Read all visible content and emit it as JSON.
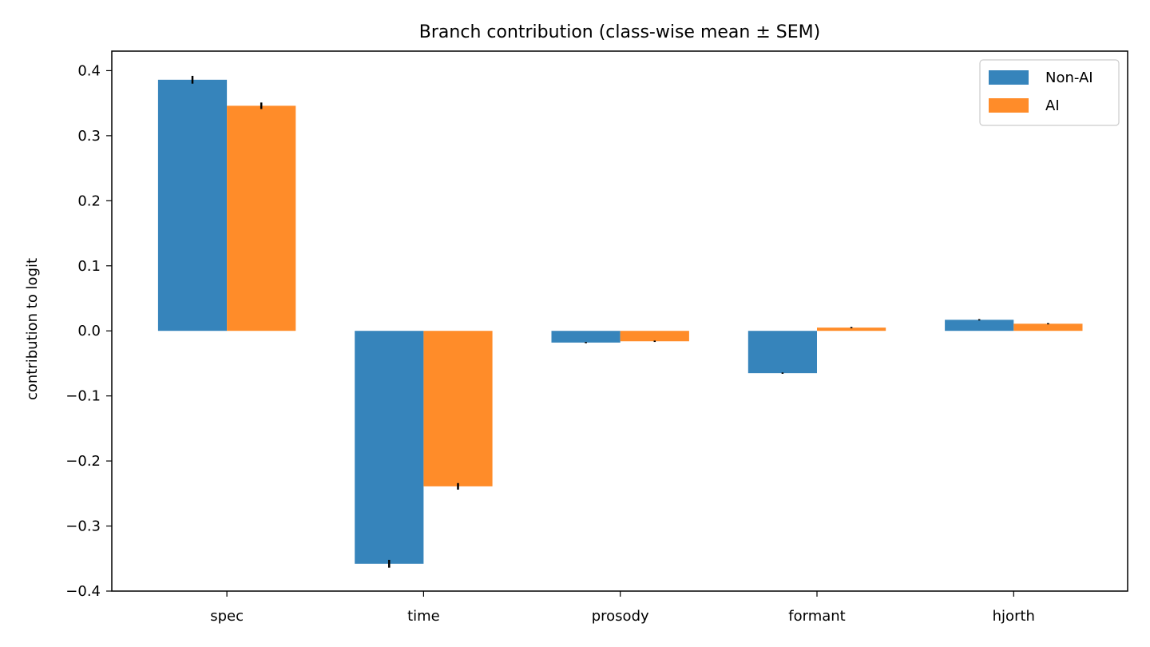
{
  "chart_data": {
    "type": "bar",
    "title": "Branch contribution (class-wise mean ± SEM)",
    "xlabel": "",
    "ylabel": "contribution to logit",
    "categories": [
      "spec",
      "time",
      "prosody",
      "formant",
      "hjorth"
    ],
    "series": [
      {
        "name": "Non-AI",
        "color": "#3684bb",
        "values": [
          0.386,
          -0.358,
          -0.018,
          -0.065,
          0.017
        ],
        "errors": [
          0.006,
          0.006,
          0.001,
          0.001,
          0.001
        ]
      },
      {
        "name": "AI",
        "color": "#ff8c29",
        "values": [
          0.346,
          -0.239,
          -0.016,
          0.005,
          0.011
        ],
        "errors": [
          0.005,
          0.005,
          0.001,
          0.001,
          0.001
        ]
      }
    ],
    "ylim": [
      -0.4,
      0.43
    ],
    "yticks": [
      0.4,
      0.3,
      0.2,
      0.1,
      0.0,
      -0.1,
      -0.2,
      -0.3,
      -0.4
    ],
    "ytick_labels": [
      "0.4",
      "0.3",
      "0.2",
      "0.1",
      "0.0",
      "−0.1",
      "−0.2",
      "−0.3",
      "−0.4"
    ],
    "grid": false,
    "legend_position": "top-right"
  }
}
